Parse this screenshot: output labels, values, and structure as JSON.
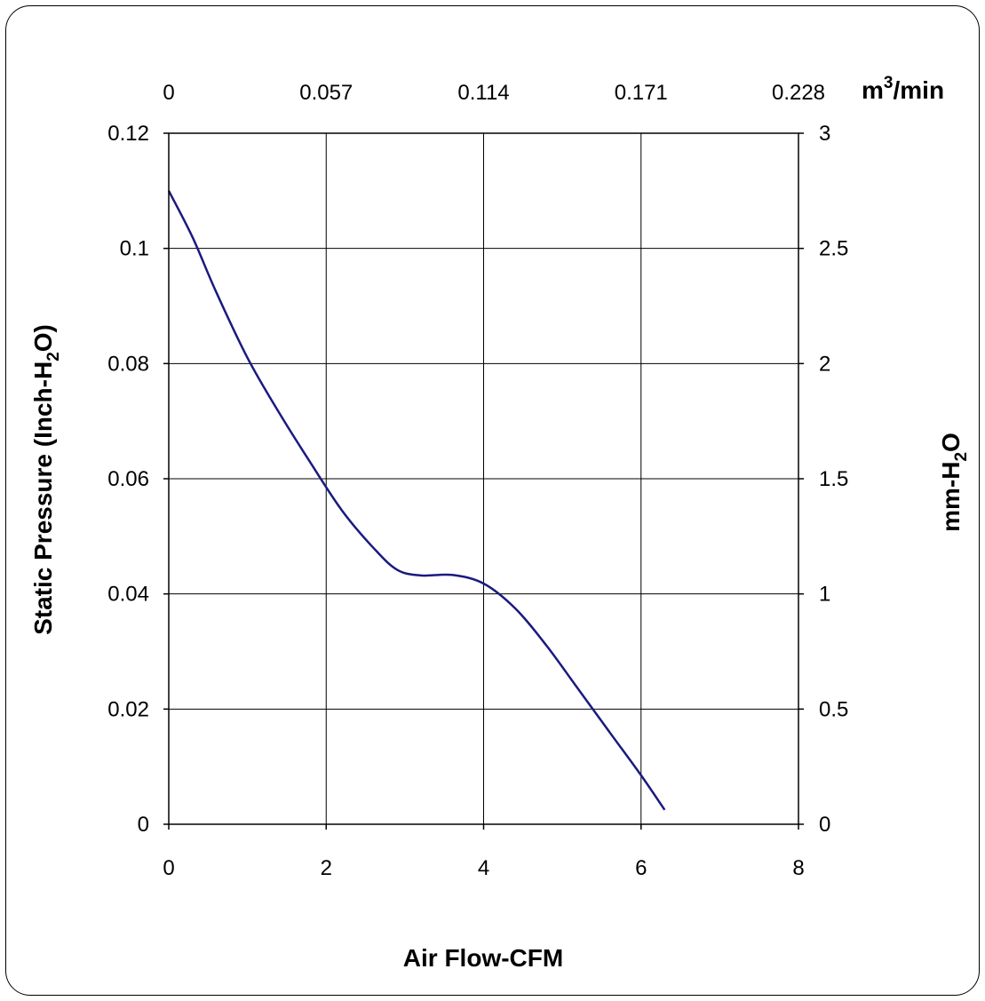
{
  "chart_data": {
    "type": "line",
    "title": "",
    "xlabel": "Air Flow-CFM",
    "ylabel_left": {
      "main": "Static Pressure (Inch-H",
      "sub": "2",
      "tail": "O)"
    },
    "ylabel_right": {
      "main": "mm-H",
      "sub": "2",
      "tail": "O"
    },
    "top_axis_unit": {
      "main": "m",
      "sup": "3",
      "tail": "/min"
    },
    "xlim": [
      0,
      8
    ],
    "ylim": [
      0,
      0.12
    ],
    "x_ticks": [
      "0",
      "2",
      "4",
      "6",
      "8"
    ],
    "y_ticks_left": [
      "0",
      "0.02",
      "0.04",
      "0.06",
      "0.08",
      "0.1",
      "0.12"
    ],
    "y_ticks_right": [
      "0",
      "0.5",
      "1",
      "1.5",
      "2",
      "2.5",
      "3"
    ],
    "x_ticks_top": [
      "0",
      "0.057",
      "0.114",
      "0.171",
      "0.228"
    ],
    "grid": true,
    "line_color": "#1a1a80",
    "series": [
      {
        "x": [
          0,
          0.3,
          0.6,
          1.0,
          1.4,
          1.8,
          2.2,
          2.6,
          2.9,
          3.2,
          3.6,
          4.0,
          4.4,
          4.8,
          5.2,
          5.6,
          6.0,
          6.3
        ],
        "y": [
          0.11,
          0.102,
          0.0925,
          0.081,
          0.0715,
          0.0628,
          0.0545,
          0.048,
          0.0442,
          0.0432,
          0.0433,
          0.0418,
          0.0375,
          0.031,
          0.0235,
          0.016,
          0.0085,
          0.0025
        ]
      }
    ]
  }
}
